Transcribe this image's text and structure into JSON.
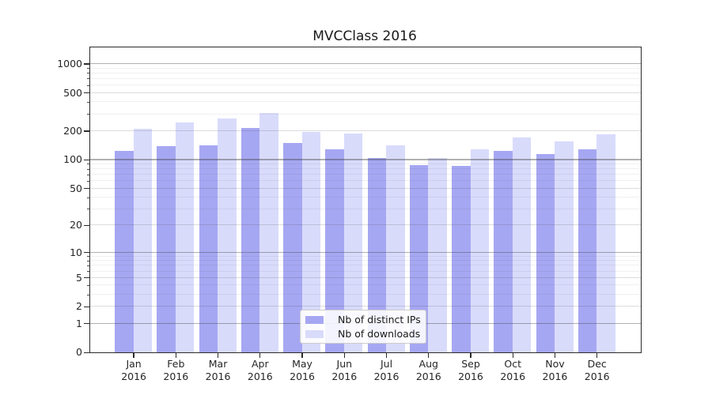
{
  "title": "MVCClass 2016",
  "legend": {
    "items": [
      {
        "label": "Nb of distinct IPs",
        "color": "#a6a7f2"
      },
      {
        "label": "Nb of downloads",
        "color": "#d9dbfb"
      }
    ]
  },
  "chart_data": {
    "type": "bar",
    "title": "MVCClass 2016",
    "categories": [
      "Jan 2016",
      "Feb 2016",
      "Mar 2016",
      "Apr 2016",
      "May 2016",
      "Jun 2016",
      "Jul 2016",
      "Aug 2016",
      "Sep 2016",
      "Oct 2016",
      "Nov 2016",
      "Dec 2016"
    ],
    "series": [
      {
        "name": "Nb of distinct IPs",
        "color": "#a6a7f2",
        "values": [
          124,
          138,
          142,
          213,
          150,
          128,
          104,
          88,
          85,
          123,
          114,
          127
        ]
      },
      {
        "name": "Nb of downloads",
        "color": "#d9dbfb",
        "values": [
          210,
          247,
          270,
          305,
          193,
          189,
          142,
          103,
          128,
          172,
          156,
          183
        ]
      }
    ],
    "xlabel": "",
    "ylabel": "",
    "yscale": "symlog-log1p",
    "ylim": [
      0,
      1480
    ],
    "yticks": [
      0,
      1,
      2,
      5,
      10,
      20,
      50,
      100,
      200,
      500,
      1000
    ],
    "grid": {
      "tier1": [
        1,
        10,
        100,
        1000
      ],
      "tier2": [
        2,
        5,
        20,
        50,
        200,
        500
      ],
      "minor": [
        3,
        4,
        6,
        7,
        8,
        9,
        30,
        40,
        60,
        70,
        80,
        90,
        300,
        400,
        600,
        700,
        800,
        900
      ]
    },
    "grid_on": true,
    "legend_position": "lower center"
  }
}
